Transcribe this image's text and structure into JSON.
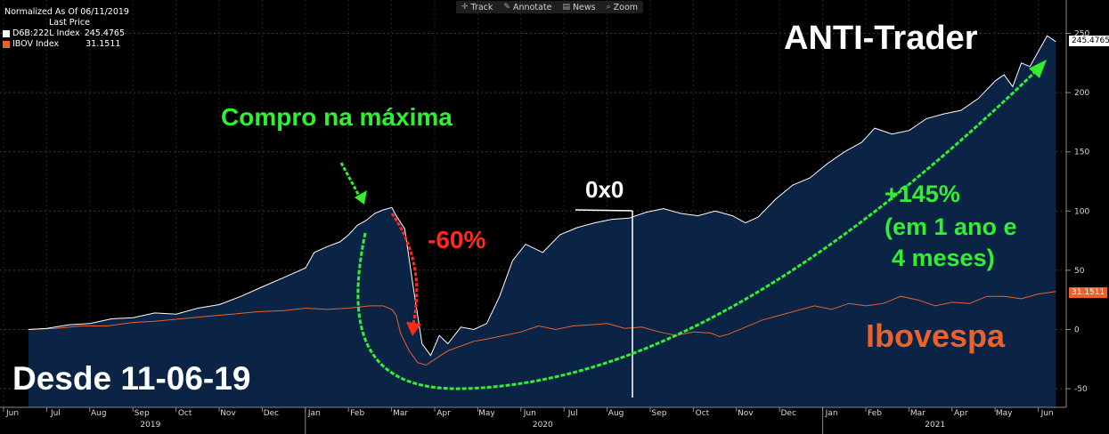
{
  "legend": {
    "normalized": "Normalized As Of 06/11/2019",
    "last_price": "Last Price",
    "series": [
      {
        "label": "D6B:222L Index",
        "value": "245.4765",
        "color": "#ffffff"
      },
      {
        "label": "IBOV Index",
        "value": "31.1511",
        "color": "#e8622a"
      }
    ]
  },
  "toolbar": {
    "track": "Track",
    "annotate": "Annotate",
    "news": "News",
    "zoom": "Zoom"
  },
  "badges": {
    "anti": "245.4765",
    "ibov": "31.1511"
  },
  "annotations": {
    "title": "ANTI-Trader",
    "compro": "Compro na máxima",
    "drop": "-60%",
    "zero": "0x0",
    "gain1": "+145%",
    "gain2": "(em 1 ano e",
    "gain3": "4 meses)",
    "ibovespa": "Ibovespa",
    "desde": "Desde 11-06-19"
  },
  "colors": {
    "anti_line": "#ffffff",
    "anti_fill": "#0b2345",
    "ibov_line": "#e8622a",
    "green": "#33ee33",
    "red": "#ff2a1a"
  },
  "chart_data": {
    "type": "area",
    "ylim": [
      -58,
      260
    ],
    "y_ticks": [
      250,
      200,
      150,
      100,
      50,
      0,
      -50
    ],
    "x_ticks": [
      "Jun",
      "Jul",
      "Aug",
      "Sep",
      "Oct",
      "Nov",
      "Dec",
      "Jan",
      "Feb",
      "Mar",
      "Apr",
      "May",
      "Jun",
      "Jul",
      "Aug",
      "Sep",
      "Oct",
      "Nov",
      "Dec",
      "Jan",
      "Feb",
      "Mar",
      "Apr",
      "May",
      "Jun"
    ],
    "x_tick_months": [
      0,
      1,
      2,
      3,
      4,
      5,
      6,
      7,
      8,
      9,
      10,
      11,
      12,
      13,
      14,
      15,
      16,
      17,
      18,
      19,
      20,
      21,
      22,
      23,
      24
    ],
    "years": [
      {
        "label": "2019",
        "month": 3.2
      },
      {
        "label": "2020",
        "month": 12.3
      },
      {
        "label": "2021",
        "month": 21.4
      }
    ],
    "series": [
      {
        "name": "D6B:222L Index",
        "x": [
          0.37,
          0.8,
          1.3,
          1.8,
          2.3,
          2.8,
          3.3,
          3.8,
          4.3,
          4.8,
          5.3,
          5.8,
          6.3,
          6.8,
          7.0,
          7.3,
          7.6,
          7.8,
          8.0,
          8.2,
          8.4,
          8.6,
          8.8,
          8.9,
          9.1,
          9.3,
          9.5,
          9.7,
          9.9,
          10.1,
          10.4,
          10.7,
          11.0,
          11.3,
          11.6,
          11.9,
          12.3,
          12.7,
          13.1,
          13.5,
          13.9,
          14.3,
          14.7,
          15.1,
          15.5,
          15.9,
          16.3,
          16.7,
          17.0,
          17.3,
          17.7,
          18.1,
          18.5,
          18.9,
          19.3,
          19.7,
          20.0,
          20.4,
          20.8,
          21.2,
          21.6,
          22.0,
          22.4,
          22.8,
          23.0,
          23.2,
          23.4,
          23.6,
          23.8,
          24.0,
          24.2
        ],
        "values": [
          0,
          1,
          4,
          5,
          9,
          10,
          14,
          13,
          18,
          21,
          28,
          36,
          44,
          52,
          65,
          70,
          74,
          80,
          88,
          92,
          98,
          101,
          103,
          96,
          85,
          35,
          -12,
          -22,
          -5,
          -12,
          2,
          0,
          5,
          28,
          58,
          72,
          65,
          80,
          86,
          90,
          93,
          94,
          99,
          102,
          98,
          96,
          100,
          96,
          90,
          95,
          110,
          122,
          128,
          140,
          150,
          158,
          170,
          165,
          168,
          178,
          182,
          185,
          195,
          210,
          215,
          205,
          225,
          222,
          235,
          248,
          243
        ],
        "color": "#ffffff"
      },
      {
        "name": "IBOV Index",
        "x": [
          0.37,
          1.0,
          1.6,
          2.2,
          2.8,
          3.3,
          3.9,
          4.5,
          5.1,
          5.7,
          6.3,
          6.8,
          7.3,
          7.8,
          8.3,
          8.6,
          8.8,
          8.9,
          9.0,
          9.2,
          9.4,
          9.6,
          9.8,
          10.1,
          10.4,
          10.7,
          11.0,
          11.4,
          11.8,
          12.2,
          12.6,
          13.0,
          13.4,
          13.8,
          14.2,
          14.6,
          15.0,
          15.4,
          15.8,
          16.2,
          16.4,
          16.6,
          17.0,
          17.4,
          17.8,
          18.2,
          18.6,
          19.0,
          19.4,
          19.8,
          20.2,
          20.6,
          21.0,
          21.4,
          21.8,
          22.2,
          22.6,
          23.0,
          23.4,
          23.8,
          24.2
        ],
        "values": [
          0,
          1,
          3,
          3,
          6,
          7,
          9,
          11,
          13,
          15,
          16,
          18,
          17,
          18,
          20,
          20,
          17,
          12,
          -3,
          -18,
          -28,
          -30,
          -25,
          -18,
          -14,
          -10,
          -8,
          -5,
          -2,
          3,
          0,
          3,
          4,
          5,
          1,
          2,
          -2,
          -5,
          -2,
          -3,
          -6,
          -4,
          2,
          8,
          12,
          16,
          20,
          17,
          22,
          20,
          22,
          28,
          25,
          20,
          23,
          22,
          28,
          28,
          26,
          30,
          32
        ],
        "color": "#e8622a"
      }
    ]
  }
}
